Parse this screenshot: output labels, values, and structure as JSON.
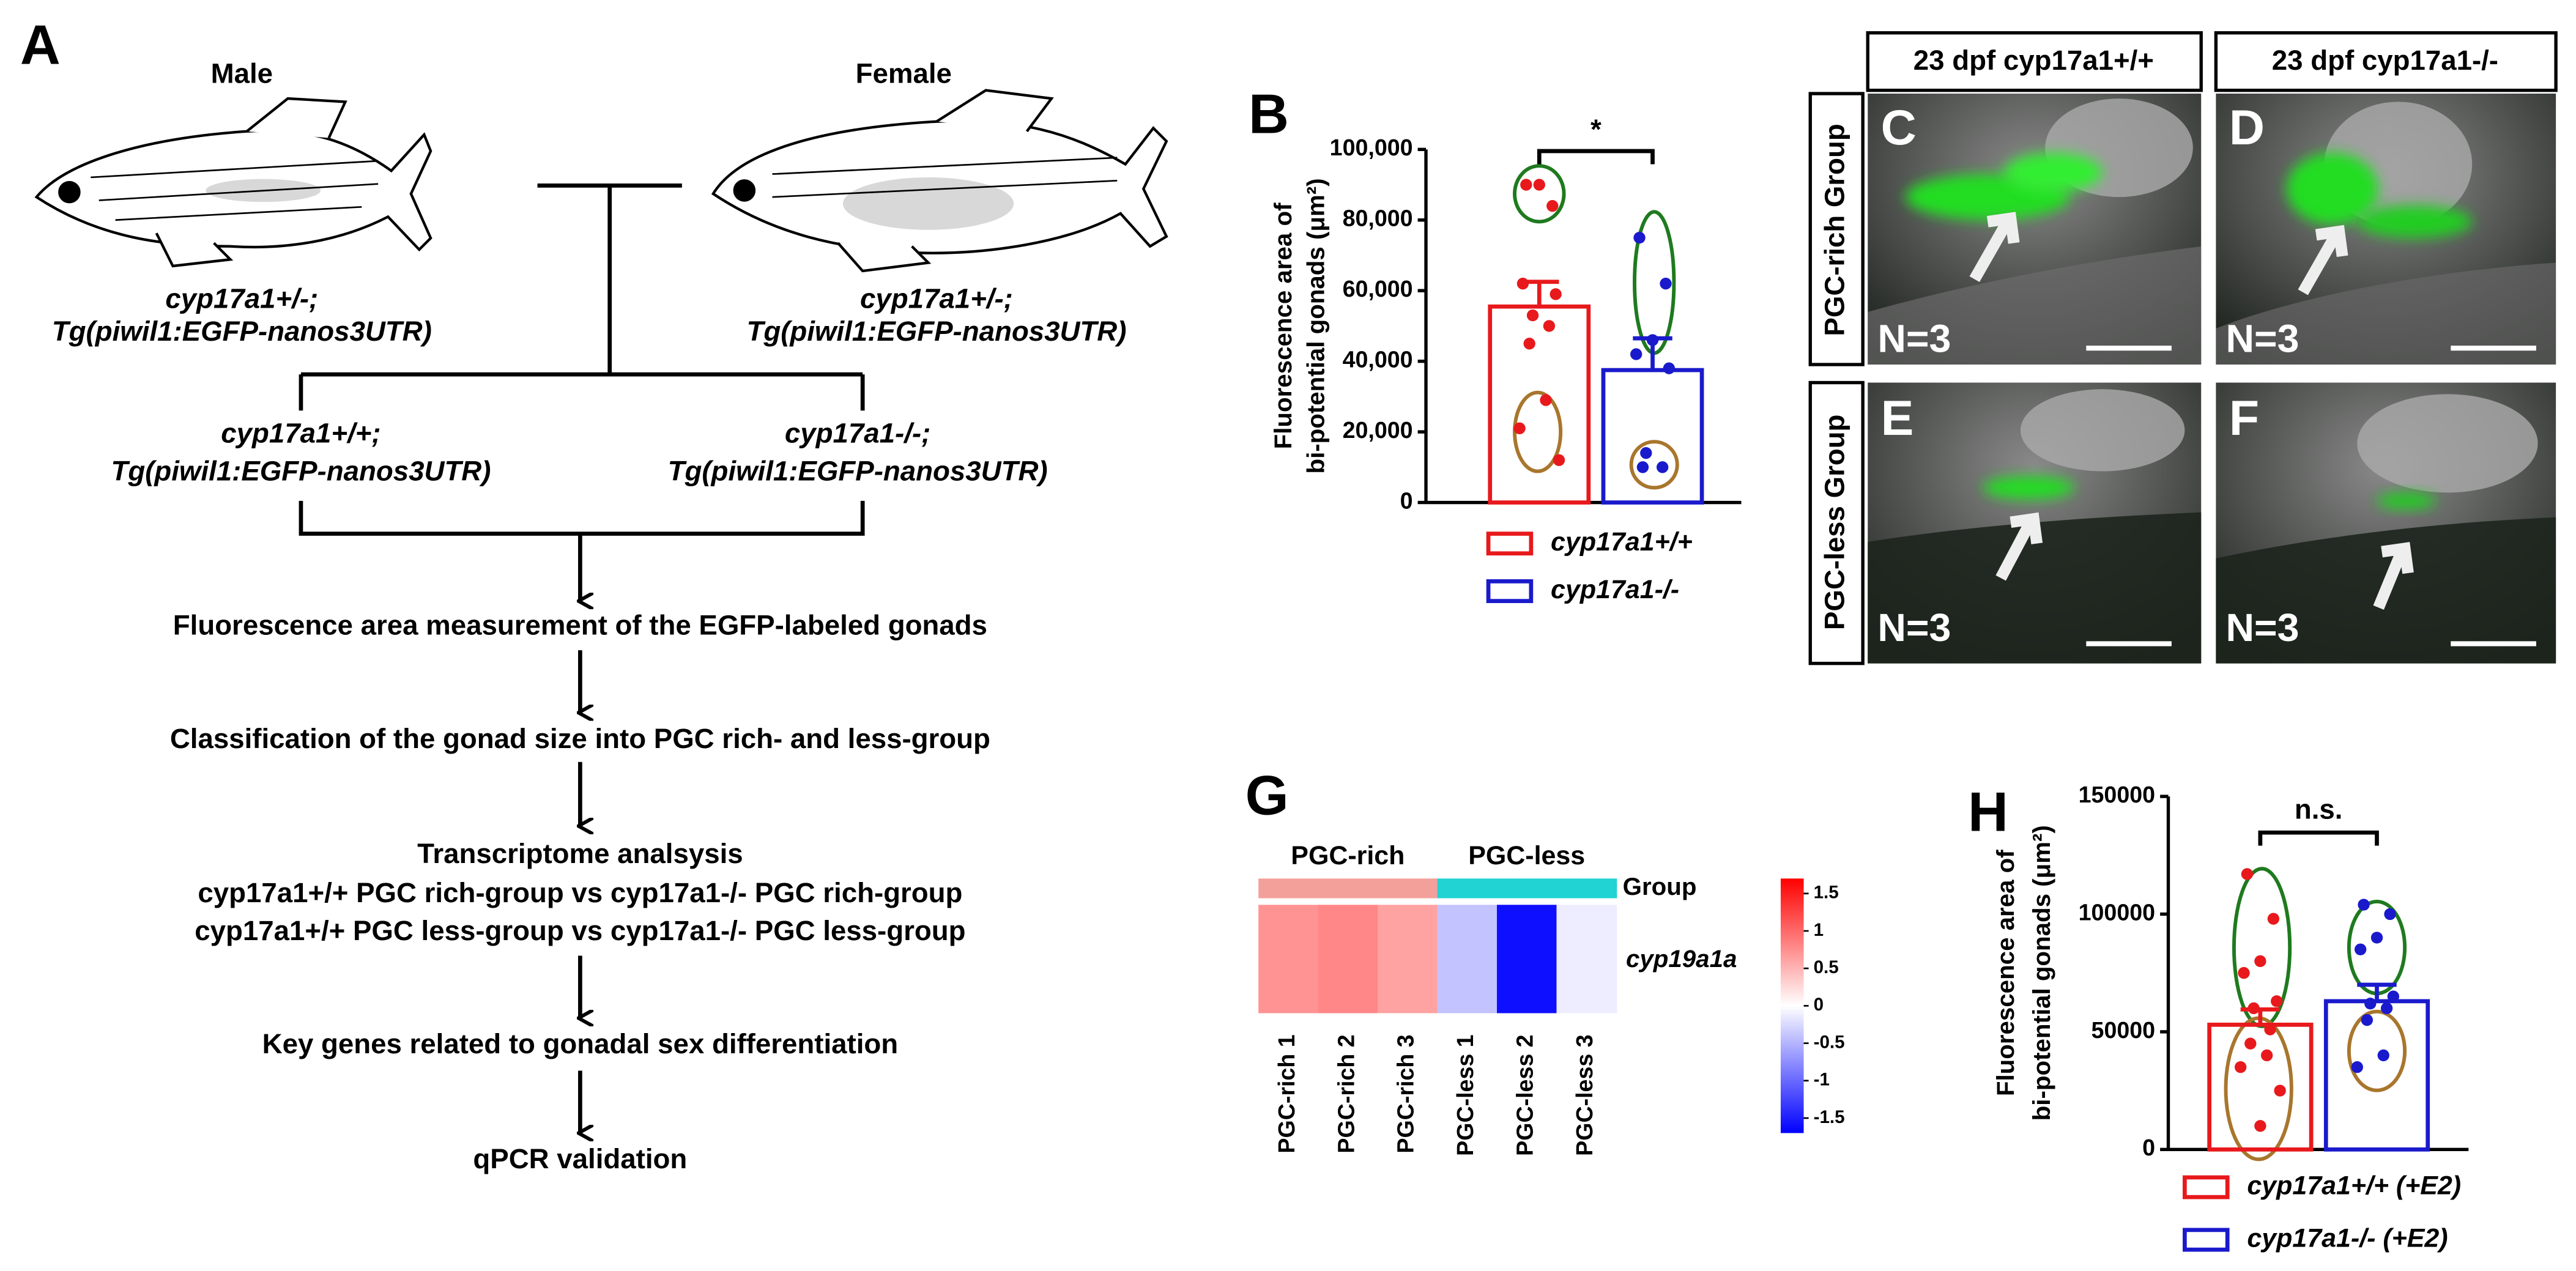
{
  "panel_labels": [
    "A",
    "B",
    "G",
    "H"
  ],
  "flowchart": {
    "parents": [
      {
        "sex": "Male",
        "genotype": "cyp17a1+/-;",
        "transgene": "Tg(piwil1:EGFP-nanos3UTR)"
      },
      {
        "sex": "Female",
        "genotype": "cyp17a1+/-;",
        "transgene": "Tg(piwil1:EGFP-nanos3UTR)"
      }
    ],
    "offspring": [
      {
        "genotype": "cyp17a1+/+;",
        "transgene": "Tg(piwil1:EGFP-nanos3UTR)"
      },
      {
        "genotype": "cyp17a1-/-;",
        "transgene": "Tg(piwil1:EGFP-nanos3UTR)"
      }
    ],
    "steps": [
      [
        "Fluorescence area measurement of the EGFP-labeled gonads"
      ],
      [
        "Classification of the gonad size into PGC rich- and less-group"
      ],
      [
        "Transcriptome analsysis",
        "cyp17a1+/+ PGC rich-group vs cyp17a1-/- PGC rich-group",
        "cyp17a1+/+ PGC less-group vs cyp17a1-/- PGC less-group"
      ],
      [
        "Key genes related to gonadal sex differentiation"
      ],
      [
        "qPCR validation"
      ]
    ]
  },
  "images": {
    "columns": [
      "23 dpf  cyp17a1+/+",
      "23 dpf  cyp17a1-/-"
    ],
    "rows": [
      "PGC-rich Group",
      "PGC-less Group"
    ],
    "panels": [
      {
        "label": "C",
        "note": "N=3"
      },
      {
        "label": "D",
        "note": "N=3"
      },
      {
        "label": "E",
        "note": "N=3"
      },
      {
        "label": "F",
        "note": "N=3"
      }
    ]
  },
  "chart_data": [
    {
      "type": "bar",
      "y_label": [
        "Fluorescence area of",
        "bi-potential gonads (μm²)"
      ],
      "ylim": [
        0,
        100000
      ],
      "yticks": [
        0,
        {
          "value": 20000,
          "label": "20,000"
        },
        {
          "value": 40000,
          "label": "40,000"
        },
        {
          "value": 60000,
          "label": "60,000"
        },
        {
          "value": 80000,
          "label": "80,000"
        },
        {
          "value": 100000,
          "label": "100,000"
        }
      ],
      "annotation": "*",
      "legend": "bottom",
      "series": [
        {
          "name": "cyp17a1+/+",
          "color": "#e8191c",
          "values": [
            55500
          ],
          "errors": [
            7000
          ],
          "points": [
            90000,
            84000,
            90000,
            62000,
            59000,
            53000,
            50000,
            45000,
            29000,
            21000,
            12000
          ]
        },
        {
          "name": "cyp17a1-/-",
          "color": "#1a1acc",
          "values": [
            37500
          ],
          "errors": [
            9000
          ],
          "points": [
            75000,
            62000,
            46000,
            42000,
            38000,
            14000,
            10000,
            10000
          ]
        }
      ]
    },
    {
      "type": "heatmap",
      "categories": [
        "PGC-rich 1",
        "PGC-rich 2",
        "PGC-rich 3",
        "PGC-less 1",
        "PGC-less 2",
        "PGC-less 3"
      ],
      "rows": [
        "Group",
        "cyp19a1a"
      ],
      "groups": [
        {
          "name": "PGC-rich",
          "color": "#f4a09a"
        },
        {
          "name": "PGC-less",
          "color": "#22d3d3"
        }
      ],
      "values": [
        0.72,
        0.8,
        0.62,
        -0.4,
        -1.6,
        -0.12
      ],
      "clim": [
        -1.7,
        1.7
      ],
      "cticks": [
        1.5,
        1,
        0.5,
        0,
        -0.5,
        -1,
        -1.5
      ],
      "cmap": [
        "#0000ff",
        "#ffffff",
        "#ff0000"
      ]
    },
    {
      "type": "bar",
      "y_label": [
        "Fluorescence area of",
        "bi-potential gonads (μm²)"
      ],
      "ylim": [
        0,
        150000
      ],
      "yticks": [
        0,
        50000,
        100000,
        150000
      ],
      "annotation": "n.s.",
      "legend": "bottom",
      "series": [
        {
          "name": "cyp17a1+/+ (+E2)",
          "color": "#e8191c",
          "values": [
            53000
          ],
          "errors": [
            6500
          ],
          "points": [
            117000,
            98000,
            80000,
            75000,
            63000,
            60000,
            51000,
            45000,
            40000,
            35000,
            25000,
            10000
          ]
        },
        {
          "name": "cyp17a1-/- (+E2)",
          "color": "#1a1acc",
          "values": [
            63000
          ],
          "errors": [
            7000
          ],
          "points": [
            104000,
            100000,
            90000,
            85000,
            65000,
            62000,
            60000,
            55000,
            40000,
            35000
          ]
        }
      ]
    }
  ]
}
